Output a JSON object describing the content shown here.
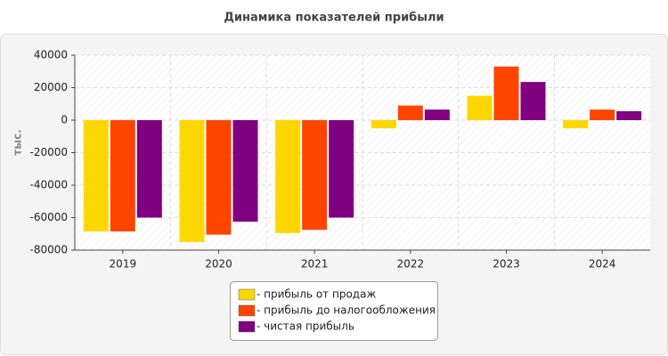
{
  "chart_data": {
    "type": "bar",
    "title": "Динамика показателей прибыли",
    "y_label": "тыс.",
    "categories": [
      "2019",
      "2020",
      "2021",
      "2022",
      "2023",
      "2024"
    ],
    "series": [
      {
        "name": "- прибыль от продаж",
        "color": "#ffd700",
        "values": [
          -68500,
          -75000,
          -69500,
          -5000,
          15000,
          -5000
        ]
      },
      {
        "name": "- прибыль до налогообложения",
        "color": "#ff4500",
        "values": [
          -68500,
          -70500,
          -67500,
          9000,
          33000,
          6500
        ]
      },
      {
        "name": "- чистая прибыль",
        "color": "#800080",
        "values": [
          -60000,
          -62500,
          -60000,
          6500,
          23500,
          5500
        ]
      }
    ],
    "ylim": [
      -80000,
      40000
    ],
    "yticks": [
      -80000,
      -60000,
      -40000,
      -20000,
      0,
      20000,
      40000
    ],
    "grid": true
  }
}
